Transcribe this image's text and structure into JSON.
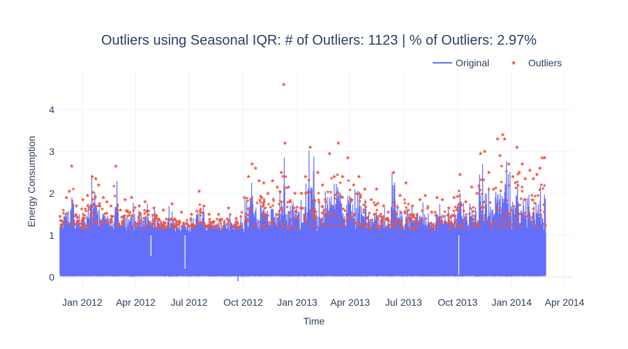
{
  "chart_data": {
    "type": "line",
    "title": "Outliers using Seasonal IQR: # of Outliers: 1123 | % of Outliers: 2.97%",
    "xlabel": "Time",
    "ylabel": "Energy Consumption",
    "x_ticks": [
      "Jan 2012",
      "Apr 2012",
      "Jul 2012",
      "Oct 2012",
      "Jan 2013",
      "Apr 2013",
      "Jul 2013",
      "Oct 2013",
      "Jan 2014",
      "Apr 2014"
    ],
    "x_tick_dates": [
      "2012-01-01",
      "2012-04-01",
      "2012-07-01",
      "2012-10-01",
      "2013-01-01",
      "2013-04-01",
      "2013-07-01",
      "2013-10-01",
      "2014-01-01",
      "2014-04-01"
    ],
    "xlim": [
      "2011-11-17",
      "2014-04-14"
    ],
    "y_ticks": [
      "0",
      "1",
      "2",
      "3",
      "4"
    ],
    "ylim": [
      -0.25,
      4.95
    ],
    "grid": true,
    "legend_position": "top-right",
    "series": [
      {
        "name": "Original",
        "mode": "line",
        "color": "#636efa",
        "x_range": [
          "2011-11-24",
          "2014-02-28"
        ],
        "min": -0.1,
        "max": 4.6
      },
      {
        "name": "Outliers",
        "mode": "markers",
        "marker": "star",
        "color": "#ef553b",
        "count": 1123,
        "percent": 2.97,
        "points": [
          [
            "2011-11-24",
            1.45
          ],
          [
            "2011-12-05",
            1.9
          ],
          [
            "2011-12-10",
            2.05
          ],
          [
            "2011-12-14",
            2.65
          ],
          [
            "2011-12-22",
            1.7
          ],
          [
            "2012-01-02",
            1.85
          ],
          [
            "2012-01-10",
            1.95
          ],
          [
            "2012-01-18",
            2.4
          ],
          [
            "2012-01-24",
            2.35
          ],
          [
            "2012-01-29",
            2.2
          ],
          [
            "2012-02-06",
            1.9
          ],
          [
            "2012-02-12",
            1.8
          ],
          [
            "2012-02-19",
            1.7
          ],
          [
            "2012-02-27",
            2.65
          ],
          [
            "2012-03-06",
            1.6
          ],
          [
            "2012-03-14",
            1.85
          ],
          [
            "2012-03-25",
            1.9
          ],
          [
            "2012-04-07",
            1.7
          ],
          [
            "2012-04-17",
            1.8
          ],
          [
            "2012-05-02",
            1.65
          ],
          [
            "2012-05-18",
            1.6
          ],
          [
            "2012-06-02",
            1.75
          ],
          [
            "2012-06-18",
            1.55
          ],
          [
            "2012-07-05",
            1.5
          ],
          [
            "2012-07-18",
            2.05
          ],
          [
            "2012-08-04",
            1.5
          ],
          [
            "2012-08-20",
            1.5
          ],
          [
            "2012-09-06",
            1.65
          ],
          [
            "2012-09-19",
            1.4
          ],
          [
            "2012-10-03",
            1.9
          ],
          [
            "2012-10-10",
            2.4
          ],
          [
            "2012-10-16",
            2.7
          ],
          [
            "2012-10-22",
            2.6
          ],
          [
            "2012-10-28",
            2.3
          ],
          [
            "2012-11-05",
            2.25
          ],
          [
            "2012-11-12",
            2.0
          ],
          [
            "2012-11-20",
            2.3
          ],
          [
            "2012-11-28",
            2.15
          ],
          [
            "2012-12-05",
            2.5
          ],
          [
            "2012-12-09",
            4.6
          ],
          [
            "2012-12-11",
            3.2
          ],
          [
            "2012-12-17",
            2.15
          ],
          [
            "2012-12-28",
            2.0
          ],
          [
            "2013-01-08",
            2.0
          ],
          [
            "2013-01-15",
            2.4
          ],
          [
            "2013-01-23",
            3.1
          ],
          [
            "2013-02-05",
            2.5
          ],
          [
            "2013-02-13",
            2.2
          ],
          [
            "2013-02-25",
            2.95
          ],
          [
            "2013-03-05",
            2.4
          ],
          [
            "2013-03-12",
            3.2
          ],
          [
            "2013-03-19",
            2.4
          ],
          [
            "2013-03-28",
            2.85
          ],
          [
            "2013-04-07",
            2.2
          ],
          [
            "2013-04-16",
            2.4
          ],
          [
            "2013-04-26",
            2.1
          ],
          [
            "2013-05-07",
            1.85
          ],
          [
            "2013-05-16",
            2.1
          ],
          [
            "2013-05-28",
            1.7
          ],
          [
            "2013-06-05",
            1.55
          ],
          [
            "2013-06-14",
            2.5
          ],
          [
            "2013-06-25",
            1.95
          ],
          [
            "2013-07-05",
            2.25
          ],
          [
            "2013-07-16",
            1.7
          ],
          [
            "2013-07-29",
            1.85
          ],
          [
            "2013-08-07",
            1.95
          ],
          [
            "2013-08-18",
            1.55
          ],
          [
            "2013-08-27",
            1.9
          ],
          [
            "2013-09-05",
            1.85
          ],
          [
            "2013-09-16",
            1.65
          ],
          [
            "2013-09-25",
            1.9
          ],
          [
            "2013-10-05",
            2.45
          ],
          [
            "2013-10-15",
            1.8
          ],
          [
            "2013-10-25",
            2.15
          ],
          [
            "2013-11-03",
            2.0
          ],
          [
            "2013-11-09",
            2.95
          ],
          [
            "2013-11-16",
            3.0
          ],
          [
            "2013-11-23",
            2.5
          ],
          [
            "2013-12-01",
            2.1
          ],
          [
            "2013-12-08",
            3.3
          ],
          [
            "2013-12-12",
            2.9
          ],
          [
            "2013-12-17",
            3.4
          ],
          [
            "2013-12-20",
            3.3
          ],
          [
            "2013-12-27",
            2.7
          ],
          [
            "2014-01-03",
            2.4
          ],
          [
            "2014-01-10",
            3.1
          ],
          [
            "2014-01-14",
            2.5
          ],
          [
            "2014-01-19",
            2.7
          ],
          [
            "2014-01-24",
            2.35
          ],
          [
            "2014-02-01",
            2.55
          ],
          [
            "2014-02-07",
            2.35
          ],
          [
            "2014-02-13",
            2.45
          ],
          [
            "2014-02-18",
            2.6
          ],
          [
            "2014-02-22",
            2.85
          ],
          [
            "2014-02-26",
            2.85
          ]
        ]
      }
    ]
  }
}
